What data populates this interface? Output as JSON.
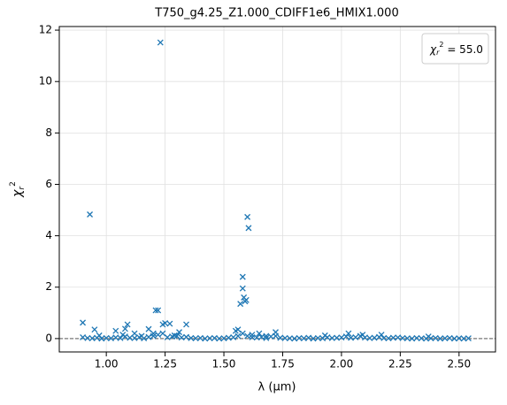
{
  "chart_data": {
    "type": "scatter",
    "title": "T750_g4.25_Z1.000_CDIFF1e6_HMIX1.000",
    "xlabel": "λ (μm)",
    "ylabel": {
      "symbol": "χ",
      "sub": "r",
      "sup": "2"
    },
    "legend": {
      "symbol": "χ",
      "sub": "r",
      "sup": "2",
      "text": " = 55.0"
    },
    "legend_position": "upper right",
    "color": "#1f77b4",
    "grid": true,
    "hline": {
      "value": 0,
      "color": "#777777",
      "style": "dashed"
    },
    "xlim": [
      0.8,
      2.655
    ],
    "ylim": [
      -0.52,
      12.14
    ],
    "xticks": [
      {
        "value": 1.0,
        "label": "1.00"
      },
      1.25,
      {
        "value": 1.5,
        "label": "1.50"
      },
      1.75,
      {
        "value": 2.0,
        "label": "2.00"
      },
      2.25,
      {
        "value": 2.5,
        "label": "2.50"
      }
    ],
    "yticks": [
      0,
      2,
      4,
      6,
      8,
      10,
      12
    ],
    "x": [
      0.9,
      0.92,
      0.94,
      0.96,
      0.98,
      1.0,
      1.02,
      1.04,
      1.06,
      1.08,
      1.1,
      1.12,
      1.14,
      1.16,
      1.18,
      1.2,
      1.22,
      1.24,
      1.26,
      1.28,
      1.3,
      1.32,
      1.34,
      1.36,
      1.38,
      1.4,
      1.42,
      1.44,
      1.46,
      1.48,
      1.5,
      1.52,
      1.54,
      1.56,
      1.58,
      1.6,
      1.62,
      1.64,
      1.66,
      1.68,
      1.7,
      1.72,
      1.74,
      1.76,
      1.78,
      1.8,
      1.82,
      1.84,
      1.86,
      1.88,
      1.9,
      1.92,
      1.94,
      1.96,
      1.98,
      2.0,
      2.02,
      2.04,
      2.06,
      2.08,
      2.1,
      2.12,
      2.14,
      2.16,
      2.18,
      2.2,
      2.22,
      2.24,
      2.26,
      2.28,
      2.3,
      2.32,
      2.34,
      2.36,
      2.38,
      2.4,
      2.42,
      2.44,
      2.46,
      2.48,
      2.5,
      2.52,
      2.54,
      0.9,
      0.93,
      0.95,
      1.04,
      1.08,
      1.09,
      1.12,
      1.18,
      1.2,
      1.21,
      1.22,
      1.23,
      1.24,
      1.25,
      1.27,
      1.31,
      1.34,
      1.55,
      1.56,
      1.57,
      1.58,
      1.58,
      1.585,
      1.59,
      1.595,
      1.6,
      1.605,
      1.65,
      1.72,
      1.93,
      2.03,
      2.09,
      2.17,
      1.29,
      1.15,
      1.07,
      0.97,
      1.62,
      1.68,
      2.37
    ],
    "values": [
      0.05,
      0.02,
      0.01,
      0.03,
      0.0,
      0.02,
      0.01,
      0.04,
      0.02,
      0.08,
      0.03,
      0.02,
      0.05,
      0.01,
      0.06,
      0.1,
      0.15,
      0.2,
      0.05,
      0.08,
      0.1,
      0.04,
      0.06,
      0.02,
      0.01,
      0.02,
      0.0,
      0.01,
      0.02,
      0.0,
      0.01,
      0.03,
      0.05,
      0.1,
      0.2,
      0.1,
      0.05,
      0.04,
      0.06,
      0.02,
      0.08,
      0.1,
      0.03,
      0.02,
      0.01,
      0.0,
      0.02,
      0.01,
      0.03,
      0.0,
      0.02,
      0.01,
      0.05,
      0.02,
      0.03,
      0.04,
      0.08,
      0.03,
      0.05,
      0.1,
      0.04,
      0.02,
      0.03,
      0.06,
      0.02,
      0.01,
      0.03,
      0.04,
      0.02,
      0.01,
      0.0,
      0.02,
      0.01,
      0.0,
      0.01,
      0.02,
      0.0,
      0.01,
      0.02,
      0.0,
      0.01,
      0.0,
      0.01,
      0.62,
      4.83,
      0.35,
      0.3,
      0.38,
      0.55,
      0.2,
      0.37,
      0.2,
      1.1,
      1.1,
      11.52,
      0.55,
      0.6,
      0.58,
      0.25,
      0.55,
      0.3,
      0.35,
      1.35,
      1.95,
      2.4,
      1.6,
      1.45,
      1.5,
      4.73,
      4.3,
      0.2,
      0.25,
      0.12,
      0.2,
      0.15,
      0.15,
      0.12,
      0.1,
      0.15,
      0.12,
      0.15,
      0.1,
      0.08
    ]
  }
}
